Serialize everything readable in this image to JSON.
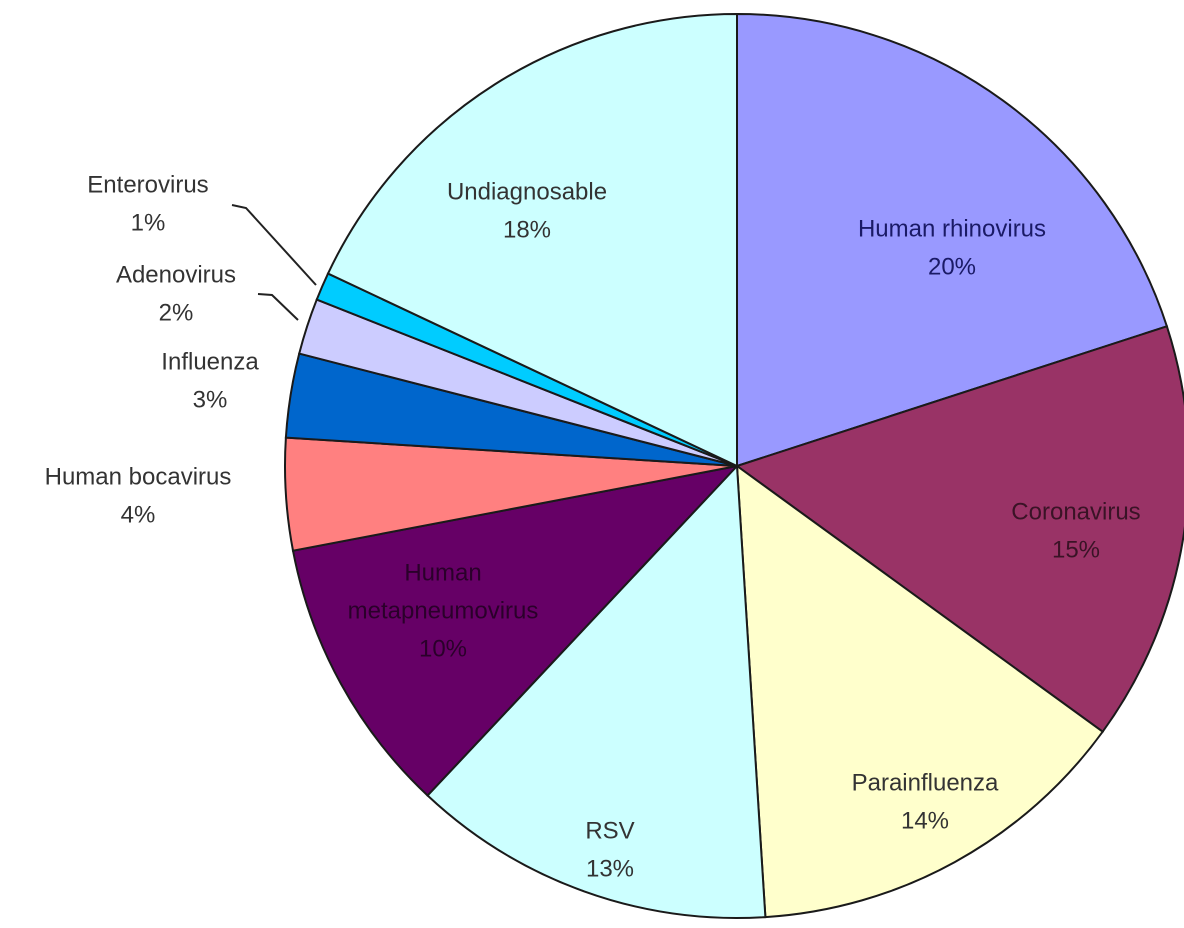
{
  "chart_data": {
    "type": "pie",
    "slices": [
      {
        "label": "Human rhinovirus",
        "value": 20,
        "value_label": "20%",
        "color": "#9999ff",
        "text_color": "#1a1a66",
        "label_placement": "inside"
      },
      {
        "label": "Coronavirus",
        "value": 15,
        "value_label": "15%",
        "color": "#993366",
        "text_color": "#3a1326",
        "label_placement": "inside"
      },
      {
        "label": "Parainfluenza",
        "value": 14,
        "value_label": "14%",
        "color": "#ffffcc",
        "text_color": "#333333",
        "label_placement": "inside"
      },
      {
        "label": "RSV",
        "value": 13,
        "value_label": "13%",
        "color": "#ccffff",
        "text_color": "#333333",
        "label_placement": "inside"
      },
      {
        "label": "Human metapneumovirus",
        "label_lines": [
          "Human",
          "metapneumovirus"
        ],
        "value": 10,
        "value_label": "10%",
        "color": "#660066",
        "text_color": "#2a002a",
        "label_placement": "inside"
      },
      {
        "label": "Human bocavirus",
        "value": 4,
        "value_label": "4%",
        "color": "#ff8080",
        "text_color": "#333333",
        "label_placement": "outside"
      },
      {
        "label": "Influenza",
        "value": 3,
        "value_label": "3%",
        "color": "#0066cc",
        "text_color": "#333333",
        "label_placement": "outside"
      },
      {
        "label": "Adenovirus",
        "value": 2,
        "value_label": "2%",
        "color": "#ccccff",
        "text_color": "#333333",
        "label_placement": "outside"
      },
      {
        "label": "Enterovirus",
        "value": 1,
        "value_label": "1%",
        "color": "#00ccff",
        "text_color": "#333333",
        "label_placement": "outside"
      },
      {
        "label": "Undiagnosable",
        "value": 18,
        "value_label": "18%",
        "color": "#ccffff",
        "text_color": "#333333",
        "label_placement": "inside"
      }
    ],
    "legend": "none"
  }
}
